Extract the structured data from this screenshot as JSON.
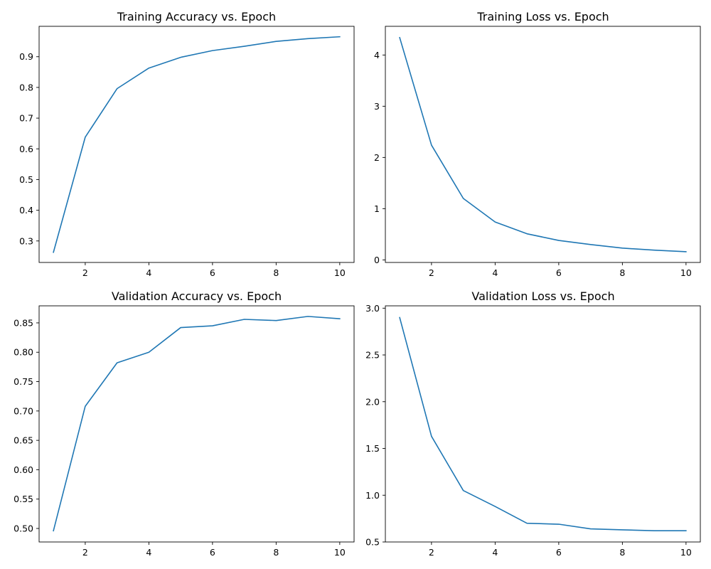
{
  "chart_data": [
    {
      "type": "line",
      "title": "Training Accuracy vs. Epoch",
      "xlabel": "",
      "ylabel": "",
      "x": [
        1,
        2,
        3,
        4,
        5,
        6,
        7,
        8,
        9,
        10
      ],
      "series": [
        {
          "values": [
            0.263,
            0.638,
            0.796,
            0.863,
            0.898,
            0.92,
            0.934,
            0.95,
            0.959,
            0.965
          ]
        }
      ],
      "xlim": [
        0.55,
        10.45
      ],
      "ylim": [
        0.23,
        0.999
      ],
      "xticks": [
        2,
        4,
        6,
        8,
        10
      ],
      "xtick_labels": [
        "2",
        "4",
        "6",
        "8",
        "10"
      ],
      "yticks": [
        0.3,
        0.4,
        0.5,
        0.6,
        0.7,
        0.8,
        0.9
      ],
      "ytick_labels": [
        "0.3",
        "0.4",
        "0.5",
        "0.6",
        "0.7",
        "0.8",
        "0.9"
      ],
      "grid": false,
      "line_color": "#1f77b4"
    },
    {
      "type": "line",
      "title": "Training Loss vs. Epoch",
      "xlabel": "",
      "ylabel": "",
      "x": [
        1,
        2,
        3,
        4,
        5,
        6,
        7,
        8,
        9,
        10
      ],
      "series": [
        {
          "values": [
            4.34,
            2.24,
            1.2,
            0.74,
            0.51,
            0.38,
            0.3,
            0.23,
            0.19,
            0.16
          ]
        }
      ],
      "xlim": [
        0.55,
        10.45
      ],
      "ylim": [
        -0.05,
        4.56
      ],
      "xticks": [
        2,
        4,
        6,
        8,
        10
      ],
      "xtick_labels": [
        "2",
        "4",
        "6",
        "8",
        "10"
      ],
      "yticks": [
        0,
        1,
        2,
        3,
        4
      ],
      "ytick_labels": [
        "0",
        "1",
        "2",
        "3",
        "4"
      ],
      "grid": false,
      "line_color": "#1f77b4"
    },
    {
      "type": "line",
      "title": "Validation Accuracy vs. Epoch",
      "xlabel": "",
      "ylabel": "",
      "x": [
        1,
        2,
        3,
        4,
        5,
        6,
        7,
        8,
        9,
        10
      ],
      "series": [
        {
          "values": [
            0.496,
            0.708,
            0.782,
            0.8,
            0.842,
            0.845,
            0.856,
            0.854,
            0.861,
            0.857
          ]
        }
      ],
      "xlim": [
        0.55,
        10.45
      ],
      "ylim": [
        0.477,
        0.879
      ],
      "xticks": [
        2,
        4,
        6,
        8,
        10
      ],
      "xtick_labels": [
        "2",
        "4",
        "6",
        "8",
        "10"
      ],
      "yticks": [
        0.5,
        0.55,
        0.6,
        0.65,
        0.7,
        0.75,
        0.8,
        0.85
      ],
      "ytick_labels": [
        "0.50",
        "0.55",
        "0.60",
        "0.65",
        "0.70",
        "0.75",
        "0.80",
        "0.85"
      ],
      "grid": false,
      "line_color": "#1f77b4"
    },
    {
      "type": "line",
      "title": "Validation Loss vs. Epoch",
      "xlabel": "",
      "ylabel": "",
      "x": [
        1,
        2,
        3,
        4,
        5,
        6,
        7,
        8,
        9,
        10
      ],
      "series": [
        {
          "values": [
            2.9,
            1.63,
            1.05,
            0.88,
            0.7,
            0.69,
            0.64,
            0.63,
            0.62,
            0.62
          ]
        }
      ],
      "xlim": [
        0.55,
        10.45
      ],
      "ylim": [
        0.5,
        3.025
      ],
      "xticks": [
        2,
        4,
        6,
        8,
        10
      ],
      "xtick_labels": [
        "2",
        "4",
        "6",
        "8",
        "10"
      ],
      "yticks": [
        0.5,
        1.0,
        1.5,
        2.0,
        2.5,
        3.0
      ],
      "ytick_labels": [
        "0.5",
        "1.0",
        "1.5",
        "2.0",
        "2.5",
        "3.0"
      ],
      "grid": false,
      "line_color": "#1f77b4"
    }
  ]
}
